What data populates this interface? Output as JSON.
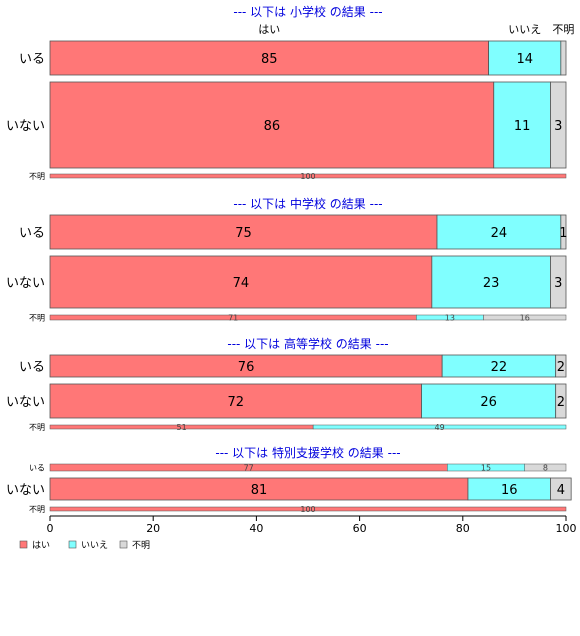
{
  "chart_data": {
    "type": "bar",
    "orientation": "horizontal",
    "stacked": true,
    "xlim": [
      0,
      100
    ],
    "x_ticks": [
      "0",
      "20",
      "40",
      "60",
      "80",
      "100"
    ],
    "legend_position": "bottom-left",
    "legend": [
      {
        "label": "はい",
        "color": "#FF7777"
      },
      {
        "label": "いいえ",
        "color": "#80FFFF"
      },
      {
        "label": "不明",
        "color": "#D9D9D9"
      }
    ],
    "top_labels": [
      {
        "text": "はい",
        "value": 42.5
      },
      {
        "text": "いいえ",
        "value": 92
      },
      {
        "text": "不明",
        "value": 99.5
      }
    ],
    "panels": [
      {
        "title": "--- 以下は 小学校 の結果 ---",
        "rows": [
          {
            "label": "いる",
            "values": [
              85,
              14,
              1
            ],
            "labels": [
              "85",
              "14",
              ""
            ]
          },
          {
            "label": "いない",
            "values": [
              86,
              11,
              3
            ],
            "labels": [
              "86",
              "11",
              "3"
            ]
          },
          {
            "label": "不明",
            "values": [
              100,
              0,
              0
            ],
            "labels": [
              "100",
              "",
              ""
            ]
          }
        ]
      },
      {
        "title": "--- 以下は 中学校 の結果 ---",
        "rows": [
          {
            "label": "いる",
            "values": [
              75,
              24,
              1
            ],
            "labels": [
              "75",
              "24",
              "1"
            ]
          },
          {
            "label": "いない",
            "values": [
              74,
              23,
              3
            ],
            "labels": [
              "74",
              "23",
              "3"
            ]
          },
          {
            "label": "不明",
            "values": [
              71,
              13,
              16
            ],
            "labels": [
              "71",
              "13",
              "16"
            ]
          }
        ]
      },
      {
        "title": "--- 以下は 高等学校 の結果 ---",
        "rows": [
          {
            "label": "いる",
            "values": [
              76,
              22,
              2
            ],
            "labels": [
              "76",
              "22",
              "2"
            ]
          },
          {
            "label": "いない",
            "values": [
              72,
              26,
              2
            ],
            "labels": [
              "72",
              "26",
              "2"
            ]
          },
          {
            "label": "不明",
            "values": [
              51,
              49,
              0
            ],
            "labels": [
              "51",
              "49",
              ""
            ]
          }
        ]
      },
      {
        "title": "--- 以下は 特別支援学校 の結果 ---",
        "rows": [
          {
            "label": "いる",
            "values": [
              77,
              15,
              8
            ],
            "labels": [
              "77",
              "15",
              "8"
            ]
          },
          {
            "label": "いない",
            "values": [
              81,
              16,
              4
            ],
            "labels": [
              "81",
              "16",
              "4"
            ]
          },
          {
            "label": "不明",
            "values": [
              100,
              0,
              0
            ],
            "labels": [
              "100",
              "",
              ""
            ]
          }
        ]
      }
    ]
  }
}
